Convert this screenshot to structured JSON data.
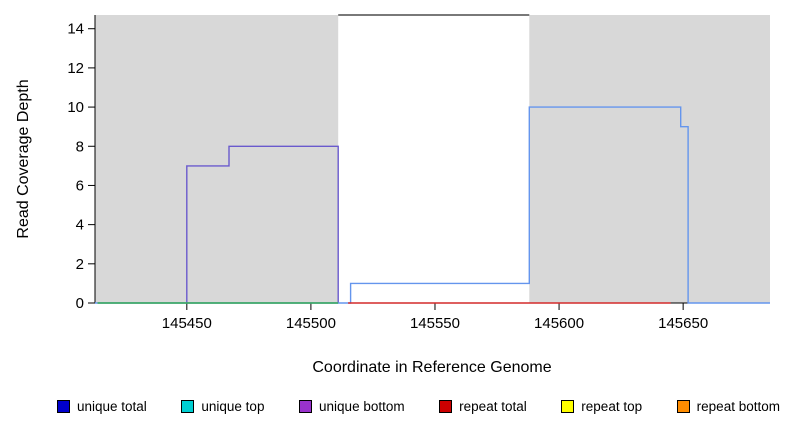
{
  "chart_data": {
    "type": "line",
    "title": "",
    "xlabel": "Coordinate in Reference Genome",
    "ylabel": "Read Coverage Depth",
    "xlim": [
      145413,
      145685
    ],
    "ylim": [
      0,
      14.7
    ],
    "xticks": [
      145450,
      145500,
      145550,
      145600,
      145650
    ],
    "yticks": [
      0,
      2,
      4,
      6,
      8,
      10,
      12,
      14
    ],
    "grid": false,
    "plot_background": "#ffffff",
    "shaded_region_color": "#d8d8d8",
    "shaded_regions": [
      {
        "x0": 145413,
        "x1": 145511
      },
      {
        "x0": 145588,
        "x1": 145685
      }
    ],
    "series": [
      {
        "name": "purple steps",
        "color": "#6a5acd",
        "points": [
          [
            145450,
            0
          ],
          [
            145450,
            7
          ],
          [
            145467,
            7
          ],
          [
            145467,
            8
          ],
          [
            145511,
            8
          ],
          [
            145511,
            0
          ]
        ]
      },
      {
        "name": "blue steps",
        "color": "#6495ed",
        "points": [
          [
            145413,
            0
          ],
          [
            145516,
            0
          ],
          [
            145516,
            1
          ],
          [
            145588,
            1
          ],
          [
            145588,
            10
          ],
          [
            145649,
            10
          ],
          [
            145649,
            9
          ],
          [
            145652,
            9
          ],
          [
            145652,
            0
          ],
          [
            145685,
            0
          ]
        ]
      },
      {
        "name": "green baseline",
        "color": "#34a853",
        "points": [
          [
            145414,
            0
          ],
          [
            145511,
            0
          ]
        ]
      },
      {
        "name": "red baseline",
        "color": "#d42a2a",
        "points": [
          [
            145515,
            0
          ],
          [
            145645,
            0
          ]
        ]
      },
      {
        "name": "top off-scale line",
        "color": "#4d4d4d",
        "points": [
          [
            145511,
            14.7
          ],
          [
            145588,
            14.7
          ]
        ]
      }
    ],
    "legend_position": "bottom",
    "legend": [
      {
        "label": "unique total",
        "color": "#0000cd"
      },
      {
        "label": "unique top",
        "color": "#00ced1"
      },
      {
        "label": "unique bottom",
        "color": "#9932cc"
      },
      {
        "label": "repeat total",
        "color": "#cc0000"
      },
      {
        "label": "repeat top",
        "color": "#ffff00"
      },
      {
        "label": "repeat bottom",
        "color": "#ff8c00"
      }
    ]
  }
}
